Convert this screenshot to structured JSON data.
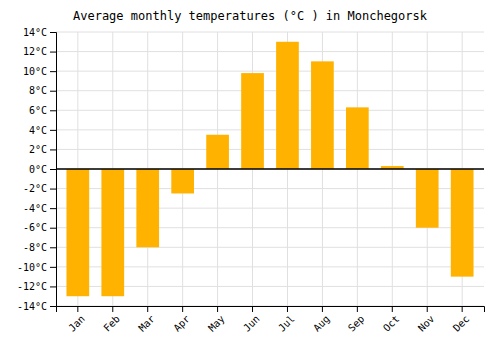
{
  "chart_data": {
    "type": "bar",
    "title": "Average monthly temperatures (°C ) in Monchegorsk",
    "categories": [
      "Jan",
      "Feb",
      "Mar",
      "Apr",
      "May",
      "Jun",
      "Jul",
      "Aug",
      "Sep",
      "Oct",
      "Nov",
      "Dec"
    ],
    "values": [
      -13,
      -13,
      -8,
      -2.5,
      3.5,
      9.8,
      13,
      11,
      6.3,
      0.3,
      -6,
      -11
    ],
    "color": "#FFB300",
    "ylim": [
      -14,
      14
    ],
    "yticks": [
      {
        "value": -14,
        "label": "-14°C"
      },
      {
        "value": -12,
        "label": "-12°C"
      },
      {
        "value": -10,
        "label": "-10°C"
      },
      {
        "value": -8,
        "label": "-8°C"
      },
      {
        "value": -6,
        "label": "-6°C"
      },
      {
        "value": -4,
        "label": "-4°C"
      },
      {
        "value": -2,
        "label": "-2°C"
      },
      {
        "value": 0,
        "label": "0°C"
      },
      {
        "value": 2,
        "label": "2°C"
      },
      {
        "value": 4,
        "label": "4°C"
      },
      {
        "value": 6,
        "label": "6°C"
      },
      {
        "value": 8,
        "label": "8°C"
      },
      {
        "value": 10,
        "label": "10°C"
      },
      {
        "value": 12,
        "label": "12°C"
      },
      {
        "value": 14,
        "label": "14°C"
      }
    ],
    "grid": true
  }
}
